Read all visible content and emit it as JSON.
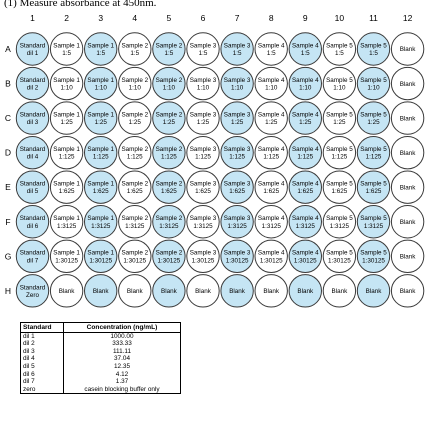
{
  "instruction": "(1) Measure absorbance at 450nm.",
  "plate": {
    "columns": [
      "1",
      "2",
      "3",
      "4",
      "5",
      "6",
      "7",
      "8",
      "9",
      "10",
      "11",
      "12"
    ],
    "rows": [
      "A",
      "B",
      "C",
      "D",
      "E",
      "F",
      "G",
      "H"
    ],
    "colors": {
      "shaded": "#c5e5f4",
      "unshaded": "#ffffff",
      "stroke": "#3a3a3a"
    },
    "wells": [
      [
        {
          "lines": [
            "Standard",
            "dil 1"
          ],
          "shaded": true
        },
        {
          "lines": [
            "Sample 1",
            "1:5"
          ],
          "shaded": false
        },
        {
          "lines": [
            "Sample 1",
            "1:5"
          ],
          "shaded": true
        },
        {
          "lines": [
            "Sample 2",
            "1:5"
          ],
          "shaded": false
        },
        {
          "lines": [
            "Sample 2",
            "1:5"
          ],
          "shaded": true
        },
        {
          "lines": [
            "Sample 3",
            "1:5"
          ],
          "shaded": false
        },
        {
          "lines": [
            "Sample 3",
            "1:5"
          ],
          "shaded": true
        },
        {
          "lines": [
            "Sample 4",
            "1:5"
          ],
          "shaded": false
        },
        {
          "lines": [
            "Sample 4",
            "1:5"
          ],
          "shaded": true
        },
        {
          "lines": [
            "Sample 5",
            "1:5"
          ],
          "shaded": false
        },
        {
          "lines": [
            "Sample 5",
            "1:5"
          ],
          "shaded": true
        },
        {
          "lines": [
            "Blank"
          ],
          "shaded": false
        }
      ],
      [
        {
          "lines": [
            "Standard",
            "dil 2"
          ],
          "shaded": true
        },
        {
          "lines": [
            "Sample 1",
            "1:10"
          ],
          "shaded": false
        },
        {
          "lines": [
            "Sample 1",
            "1:10"
          ],
          "shaded": true
        },
        {
          "lines": [
            "Sample 2",
            "1:10"
          ],
          "shaded": false
        },
        {
          "lines": [
            "Sample 2",
            "1:10"
          ],
          "shaded": true
        },
        {
          "lines": [
            "Sample 3",
            "1:10"
          ],
          "shaded": false
        },
        {
          "lines": [
            "Sample 3",
            "1:10"
          ],
          "shaded": true
        },
        {
          "lines": [
            "Sample 4",
            "1:10"
          ],
          "shaded": false
        },
        {
          "lines": [
            "Sample 4",
            "1:10"
          ],
          "shaded": true
        },
        {
          "lines": [
            "Sample 5",
            "1:10"
          ],
          "shaded": false
        },
        {
          "lines": [
            "Sample 5",
            "1:10"
          ],
          "shaded": true
        },
        {
          "lines": [
            "Blank"
          ],
          "shaded": false
        }
      ],
      [
        {
          "lines": [
            "Standard",
            "dil 3"
          ],
          "shaded": true
        },
        {
          "lines": [
            "Sample 1",
            "1:25"
          ],
          "shaded": false
        },
        {
          "lines": [
            "Sample 1",
            "1:25"
          ],
          "shaded": true
        },
        {
          "lines": [
            "Sample 2",
            "1:25"
          ],
          "shaded": false
        },
        {
          "lines": [
            "Sample 2",
            "1:25"
          ],
          "shaded": true
        },
        {
          "lines": [
            "Sample 3",
            "1:25"
          ],
          "shaded": false
        },
        {
          "lines": [
            "Sample 3",
            "1:25"
          ],
          "shaded": true
        },
        {
          "lines": [
            "Sample 4",
            "1:25"
          ],
          "shaded": false
        },
        {
          "lines": [
            "Sample 4",
            "1:25"
          ],
          "shaded": true
        },
        {
          "lines": [
            "Sample 5",
            "1:25"
          ],
          "shaded": false
        },
        {
          "lines": [
            "Sample 5",
            "1:25"
          ],
          "shaded": true
        },
        {
          "lines": [
            "Blank"
          ],
          "shaded": false
        }
      ],
      [
        {
          "lines": [
            "Standard",
            "dil 4"
          ],
          "shaded": true
        },
        {
          "lines": [
            "Sample 1",
            "1:125"
          ],
          "shaded": false
        },
        {
          "lines": [
            "Sample 1",
            "1:125"
          ],
          "shaded": true
        },
        {
          "lines": [
            "Sample 2",
            "1:125"
          ],
          "shaded": false
        },
        {
          "lines": [
            "Sample 2",
            "1:125"
          ],
          "shaded": true
        },
        {
          "lines": [
            "Sample 3",
            "1:125"
          ],
          "shaded": false
        },
        {
          "lines": [
            "Sample 3",
            "1:125"
          ],
          "shaded": true
        },
        {
          "lines": [
            "Sample 4",
            "1:125"
          ],
          "shaded": false
        },
        {
          "lines": [
            "Sample 4",
            "1:125"
          ],
          "shaded": true
        },
        {
          "lines": [
            "Sample 5",
            "1:125"
          ],
          "shaded": false
        },
        {
          "lines": [
            "Sample 5",
            "1:125"
          ],
          "shaded": true
        },
        {
          "lines": [
            "Blank"
          ],
          "shaded": false
        }
      ],
      [
        {
          "lines": [
            "Standard",
            "dil 5"
          ],
          "shaded": true
        },
        {
          "lines": [
            "Sample 1",
            "1:625"
          ],
          "shaded": false
        },
        {
          "lines": [
            "Sample 1",
            "1:625"
          ],
          "shaded": true
        },
        {
          "lines": [
            "Sample 2",
            "1:625"
          ],
          "shaded": false
        },
        {
          "lines": [
            "Sample 2",
            "1:625"
          ],
          "shaded": true
        },
        {
          "lines": [
            "Sample 3",
            "1:625"
          ],
          "shaded": false
        },
        {
          "lines": [
            "Sample 3",
            "1:625"
          ],
          "shaded": true
        },
        {
          "lines": [
            "Sample 4",
            "1:625"
          ],
          "shaded": false
        },
        {
          "lines": [
            "Sample 4",
            "1:625"
          ],
          "shaded": true
        },
        {
          "lines": [
            "Sample 5",
            "1:625"
          ],
          "shaded": false
        },
        {
          "lines": [
            "Sample 5",
            "1:625"
          ],
          "shaded": true
        },
        {
          "lines": [
            "Blank"
          ],
          "shaded": false
        }
      ],
      [
        {
          "lines": [
            "Standard",
            "dil 6"
          ],
          "shaded": true
        },
        {
          "lines": [
            "Sample 1",
            "1:3125"
          ],
          "shaded": false
        },
        {
          "lines": [
            "Sample 1",
            "1:3125"
          ],
          "shaded": true
        },
        {
          "lines": [
            "Sample 2",
            "1:3125"
          ],
          "shaded": false
        },
        {
          "lines": [
            "Sample 2",
            "1:3125"
          ],
          "shaded": true
        },
        {
          "lines": [
            "Sample 3",
            "1:3125"
          ],
          "shaded": false
        },
        {
          "lines": [
            "Sample 3",
            "1:3125"
          ],
          "shaded": true
        },
        {
          "lines": [
            "Sample 4",
            "1:3125"
          ],
          "shaded": false
        },
        {
          "lines": [
            "Sample 4",
            "1:3125"
          ],
          "shaded": true
        },
        {
          "lines": [
            "Sample 5",
            "1:3125"
          ],
          "shaded": false
        },
        {
          "lines": [
            "Sample 5",
            "1:3125"
          ],
          "shaded": true
        },
        {
          "lines": [
            "Blank"
          ],
          "shaded": false
        }
      ],
      [
        {
          "lines": [
            "Standard",
            "dil 7"
          ],
          "shaded": true
        },
        {
          "lines": [
            "Sample 1",
            "1:30125"
          ],
          "shaded": false
        },
        {
          "lines": [
            "Sample 1",
            "1:30125"
          ],
          "shaded": true
        },
        {
          "lines": [
            "Sample 2",
            "1:30125"
          ],
          "shaded": false
        },
        {
          "lines": [
            "Sample 2",
            "1:30125"
          ],
          "shaded": true
        },
        {
          "lines": [
            "Sample 3",
            "1:30125"
          ],
          "shaded": false
        },
        {
          "lines": [
            "Sample 3",
            "1:30125"
          ],
          "shaded": true
        },
        {
          "lines": [
            "Sample 4",
            "1:30125"
          ],
          "shaded": false
        },
        {
          "lines": [
            "Sample 4",
            "1:30125"
          ],
          "shaded": true
        },
        {
          "lines": [
            "Sample 5",
            "1:30125"
          ],
          "shaded": false
        },
        {
          "lines": [
            "Sample 5",
            "1:30125"
          ],
          "shaded": true
        },
        {
          "lines": [
            "Blank"
          ],
          "shaded": false
        }
      ],
      [
        {
          "lines": [
            "Standard",
            "Zero"
          ],
          "shaded": true
        },
        {
          "lines": [
            "Blank"
          ],
          "shaded": false
        },
        {
          "lines": [
            "Blank"
          ],
          "shaded": true
        },
        {
          "lines": [
            "Blank"
          ],
          "shaded": false
        },
        {
          "lines": [
            "Blank"
          ],
          "shaded": true
        },
        {
          "lines": [
            "Blank"
          ],
          "shaded": false
        },
        {
          "lines": [
            "Blank"
          ],
          "shaded": true
        },
        {
          "lines": [
            "Blank"
          ],
          "shaded": false
        },
        {
          "lines": [
            "Blank"
          ],
          "shaded": true
        },
        {
          "lines": [
            "Blank"
          ],
          "shaded": false
        },
        {
          "lines": [
            "Blank"
          ],
          "shaded": true
        },
        {
          "lines": [
            "Blank"
          ],
          "shaded": false
        }
      ]
    ]
  },
  "table": {
    "headers": [
      "Standard",
      "Concentration (ng/mL)"
    ],
    "rows": [
      [
        "dil 1",
        "1000.00"
      ],
      [
        "dil 2",
        "333.33"
      ],
      [
        "dil 3",
        "111.11"
      ],
      [
        "dil 4",
        "37.04"
      ],
      [
        "dil 5",
        "12.35"
      ],
      [
        "dil 6",
        "4.12"
      ],
      [
        "dil 7",
        "1.37"
      ],
      [
        "zero",
        "casein blocking buffer only"
      ]
    ]
  }
}
